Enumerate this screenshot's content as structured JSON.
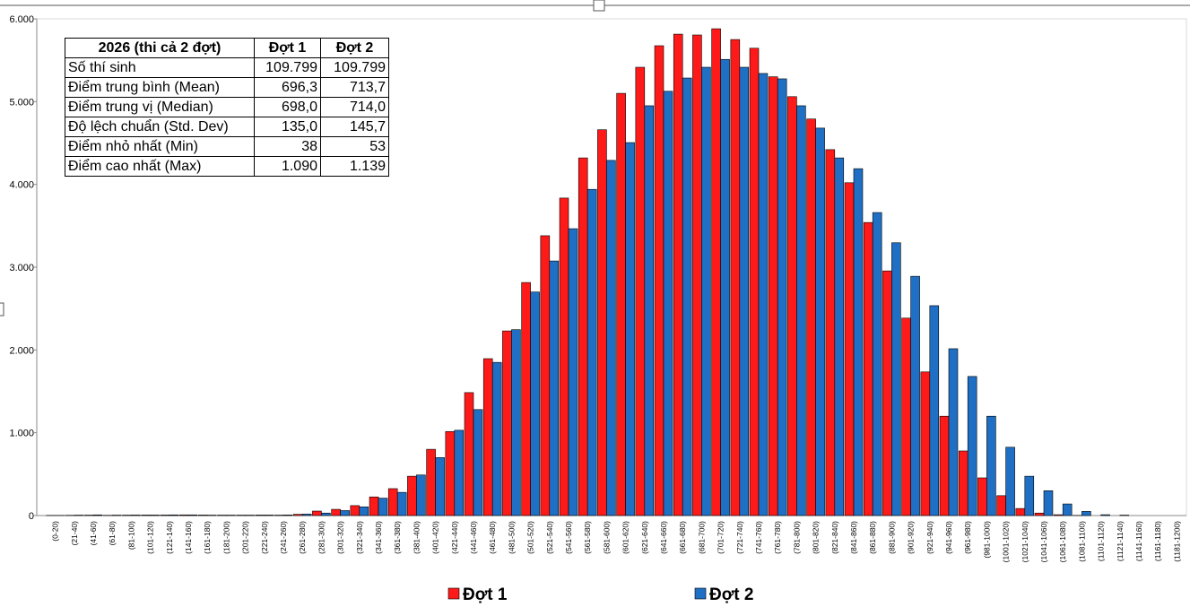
{
  "chart_data": {
    "type": "bar",
    "categories": [
      "(0-20)",
      "(21-40)",
      "(41-60)",
      "(61-80)",
      "(81-100)",
      "(101-120)",
      "(121-140)",
      "(141-160)",
      "(161-180)",
      "(181-200)",
      "(201-220)",
      "(221-240)",
      "(241-260)",
      "(261-280)",
      "(281-300)",
      "(301-320)",
      "(321-340)",
      "(341-360)",
      "(361-380)",
      "(381-400)",
      "(401-420)",
      "(421-440)",
      "(441-460)",
      "(461-480)",
      "(481-500)",
      "(501-520)",
      "(521-540)",
      "(541-560)",
      "(561-580)",
      "(581-600)",
      "(601-620)",
      "(621-640)",
      "(641-660)",
      "(661-680)",
      "(681-700)",
      "(701-720)",
      "(721-740)",
      "(741-760)",
      "(761-780)",
      "(781-800)",
      "(801-820)",
      "(821-840)",
      "(841-860)",
      "(861-880)",
      "(881-900)",
      "(901-920)",
      "(921-940)",
      "(941-960)",
      "(961-980)",
      "(981-1000)",
      "(1001-1020)",
      "(1021-1040)",
      "(1041-1060)",
      "(1061-1080)",
      "(1081-1100)",
      "(1101-1120)",
      "(1121-1140)",
      "(1141-1160)",
      "(1161-1180)",
      "(1181-1200)"
    ],
    "series": [
      {
        "name": "Đợt 1",
        "color": "#ff1a1a",
        "values": [
          2,
          3,
          5,
          3,
          5,
          6,
          6,
          8,
          6,
          5,
          5,
          6,
          5,
          15,
          54,
          75,
          120,
          225,
          325,
          475,
          800,
          1015,
          1485,
          1895,
          2230,
          2815,
          3380,
          3835,
          4320,
          4660,
          5100,
          5415,
          5675,
          5815,
          5805,
          5880,
          5750,
          5645,
          5300,
          5060,
          4790,
          4420,
          4020,
          3540,
          2955,
          2385,
          1735,
          1200,
          780,
          455,
          240,
          85,
          30,
          10,
          2,
          0,
          0,
          0,
          0,
          0
        ]
      },
      {
        "name": "Đợt 2",
        "color": "#1f6fc4",
        "values": [
          2,
          5,
          8,
          5,
          6,
          6,
          8,
          8,
          5,
          5,
          5,
          6,
          7,
          18,
          30,
          60,
          105,
          210,
          280,
          490,
          700,
          1030,
          1280,
          1850,
          2245,
          2700,
          3075,
          3465,
          3940,
          4290,
          4505,
          4950,
          5125,
          5285,
          5415,
          5510,
          5415,
          5340,
          5275,
          4950,
          4680,
          4320,
          4190,
          3660,
          3295,
          2890,
          2535,
          2015,
          1680,
          1200,
          825,
          475,
          300,
          140,
          50,
          10,
          5,
          0,
          0,
          0
        ]
      }
    ],
    "ylim": [
      0,
      6000
    ],
    "yticks": [
      0,
      {
        "value": 1000,
        "label": "1.000"
      },
      {
        "value": 2000,
        "label": "2.000"
      },
      {
        "value": 3000,
        "label": "3.000"
      },
      {
        "value": 4000,
        "label": "4.000"
      },
      {
        "value": 5000,
        "label": "5.000"
      },
      {
        "value": 6000,
        "label": "6.000"
      }
    ],
    "grid": false,
    "legend": "bottom"
  },
  "table": {
    "header": [
      "2026 (thi cả 2 đợt)",
      "Đợt 1",
      "Đợt 2"
    ],
    "rows": [
      [
        "Số thí sinh",
        "109.799",
        "109.799"
      ],
      [
        "Điểm trung bình (Mean)",
        "696,3",
        "713,7"
      ],
      [
        "Điểm trung vị (Median)",
        "698,0",
        "714,0"
      ],
      [
        "Độ lệch chuẩn (Std. Dev)",
        "135,0",
        "145,7"
      ],
      [
        "Điểm nhỏ nhất (Min)",
        "38",
        "53"
      ],
      [
        "Điểm cao nhất (Max)",
        "1.090",
        "1.139"
      ]
    ]
  }
}
